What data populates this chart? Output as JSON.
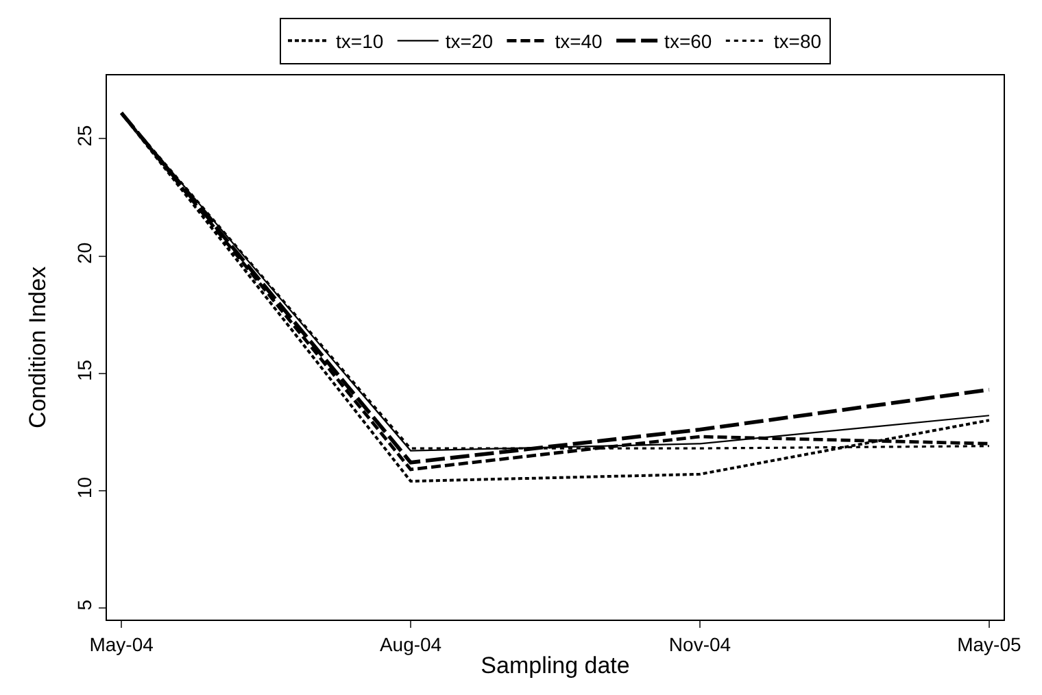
{
  "chart_data": {
    "type": "line",
    "xlabel": "Sampling date",
    "ylabel": "Condition Index",
    "categories": [
      "May-04",
      "Aug-04",
      "Nov-04",
      "May-05"
    ],
    "series": [
      {
        "name": "tx=10",
        "color": "#000000",
        "line_style": "dashed",
        "values": [
          26.1,
          10.4,
          10.7,
          13.0
        ]
      },
      {
        "name": "tx=20",
        "color": "#000000",
        "line_style": "solid",
        "values": [
          26.1,
          11.7,
          12.0,
          13.2
        ]
      },
      {
        "name": "tx=40",
        "color": "#000000",
        "line_style": "dashed",
        "values": [
          26.1,
          10.9,
          12.3,
          12.0
        ]
      },
      {
        "name": "tx=60",
        "color": "#000000",
        "line_style": "dashed",
        "values": [
          26.1,
          11.2,
          12.6,
          14.3
        ]
      },
      {
        "name": "tx=80",
        "color": "#000000",
        "line_style": "dotted",
        "values": [
          26.1,
          11.8,
          11.8,
          11.9
        ]
      }
    ],
    "ylim": [
      4.5,
      27.7
    ],
    "yticks": [
      5,
      10,
      15,
      20,
      25
    ],
    "legend": "top",
    "marker": "none"
  }
}
